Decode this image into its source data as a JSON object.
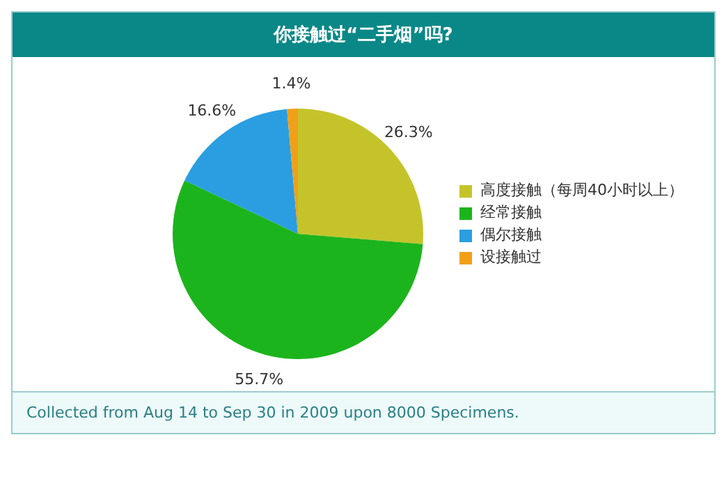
{
  "chart_data": {
    "type": "pie",
    "title": "你接触过“二手烟”吗?",
    "categories": [
      "高度接触（每周40小时以上）",
      "经常接触",
      "偶尔接触",
      "设接触过"
    ],
    "values": [
      26.3,
      55.7,
      16.6,
      1.4
    ],
    "colors": [
      "#c4c42a",
      "#1cb41c",
      "#2a9ee0",
      "#f0a018"
    ],
    "value_labels": [
      "26.3%",
      "55.7%",
      "16.6%",
      "1.4%"
    ],
    "legend": "right",
    "annotations": [
      "Collected from Aug 14 to Sep 30 in 2009 upon 8000 Specimens."
    ]
  }
}
